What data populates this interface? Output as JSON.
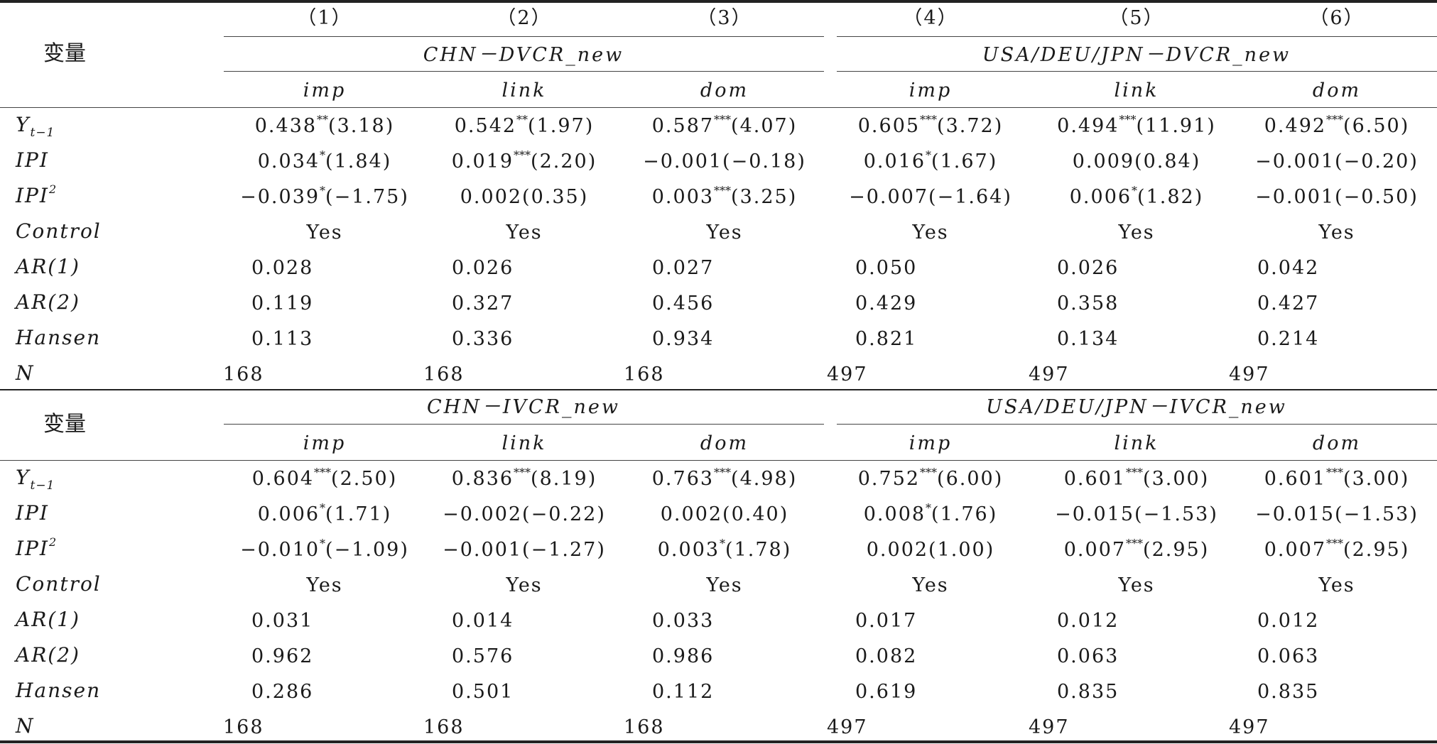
{
  "top": {
    "row_label": "变量",
    "col_numbers": [
      "（1）",
      "（2）",
      "（3）",
      "（4）",
      "（5）",
      "（6）"
    ],
    "group_left": "CHN－DVCR_new",
    "group_right": "USA/DEU/JPN－DVCR_new",
    "subcols": [
      "imp",
      "link",
      "dom",
      "imp",
      "link",
      "dom"
    ],
    "rows": [
      {
        "label": "Y",
        "sub": "t−1",
        "sup": "",
        "cells": [
          [
            "0.438",
            "**",
            "(3.18)"
          ],
          [
            "0.542",
            "**",
            "(1.97)"
          ],
          [
            "0.587",
            "***",
            "(4.07)"
          ],
          [
            "0.605",
            "***",
            "(3.72)"
          ],
          [
            "0.494",
            "***",
            "(11.91)"
          ],
          [
            "0.492",
            "***",
            "(6.50)"
          ]
        ]
      },
      {
        "label": "IPI",
        "sub": "",
        "sup": "",
        "cells": [
          [
            "0.034",
            "*",
            "(1.84)"
          ],
          [
            "0.019",
            "***",
            "(2.20)"
          ],
          [
            "−0.001",
            "",
            "(−0.18)"
          ],
          [
            "0.016",
            "*",
            "(1.67)"
          ],
          [
            "0.009",
            "",
            "(0.84)"
          ],
          [
            "−0.001",
            "",
            "(−0.20)"
          ]
        ]
      },
      {
        "label": "IPI",
        "sub": "",
        "sup": "2",
        "cells": [
          [
            "−0.039",
            "*",
            "(−1.75)"
          ],
          [
            "0.002",
            "",
            "(0.35)"
          ],
          [
            "0.003",
            "***",
            "(3.25)"
          ],
          [
            "−0.007",
            "",
            "(−1.64)"
          ],
          [
            "0.006",
            "*",
            "(1.82)"
          ],
          [
            "−0.001",
            "",
            "(−0.50)"
          ]
        ]
      },
      {
        "label": "Control",
        "sub": "",
        "sup": "",
        "cells": [
          [
            "Yes",
            "",
            ""
          ],
          [
            "Yes",
            "",
            ""
          ],
          [
            "Yes",
            "",
            ""
          ],
          [
            "Yes",
            "",
            ""
          ],
          [
            "Yes",
            "",
            ""
          ],
          [
            "Yes",
            "",
            ""
          ]
        ]
      },
      {
        "label": "AR(1)",
        "sub": "",
        "sup": "",
        "cells": [
          [
            "0.028",
            "",
            ""
          ],
          [
            "0.026",
            "",
            ""
          ],
          [
            "0.027",
            "",
            ""
          ],
          [
            "0.050",
            "",
            ""
          ],
          [
            "0.026",
            "",
            ""
          ],
          [
            "0.042",
            "",
            ""
          ]
        ]
      },
      {
        "label": "AR(2)",
        "sub": "",
        "sup": "",
        "cells": [
          [
            "0.119",
            "",
            ""
          ],
          [
            "0.327",
            "",
            ""
          ],
          [
            "0.456",
            "",
            ""
          ],
          [
            "0.429",
            "",
            ""
          ],
          [
            "0.358",
            "",
            ""
          ],
          [
            "0.427",
            "",
            ""
          ]
        ]
      },
      {
        "label": "Hansen",
        "sub": "",
        "sup": "",
        "cells": [
          [
            "0.113",
            "",
            ""
          ],
          [
            "0.336",
            "",
            ""
          ],
          [
            "0.934",
            "",
            ""
          ],
          [
            "0.821",
            "",
            ""
          ],
          [
            "0.134",
            "",
            ""
          ],
          [
            "0.214",
            "",
            ""
          ]
        ]
      },
      {
        "label": "N",
        "sub": "",
        "sup": "",
        "cells": [
          [
            "168",
            "",
            ""
          ],
          [
            "168",
            "",
            ""
          ],
          [
            "168",
            "",
            ""
          ],
          [
            "497",
            "",
            ""
          ],
          [
            "497",
            "",
            ""
          ],
          [
            "497",
            "",
            ""
          ]
        ]
      }
    ]
  },
  "bottom": {
    "row_label": "变量",
    "group_left": "CHN－IVCR_new",
    "group_right": "USA/DEU/JPN－IVCR_new",
    "subcols": [
      "imp",
      "link",
      "dom",
      "imp",
      "link",
      "dom"
    ],
    "rows": [
      {
        "label": "Y",
        "sub": "t−1",
        "sup": "",
        "cells": [
          [
            "0.604",
            "***",
            "(2.50)"
          ],
          [
            "0.836",
            "***",
            "(8.19)"
          ],
          [
            "0.763",
            "***",
            "(4.98)"
          ],
          [
            "0.752",
            "***",
            "(6.00)"
          ],
          [
            "0.601",
            "***",
            "(3.00)"
          ],
          [
            "0.601",
            "***",
            "(3.00)"
          ]
        ]
      },
      {
        "label": "IPI",
        "sub": "",
        "sup": "",
        "cells": [
          [
            "0.006",
            "*",
            "(1.71)"
          ],
          [
            "−0.002",
            "",
            "(−0.22)"
          ],
          [
            "0.002",
            "",
            "(0.40)"
          ],
          [
            "0.008",
            "*",
            "(1.76)"
          ],
          [
            "−0.015",
            "",
            "(−1.53)"
          ],
          [
            "−0.015",
            "",
            "(−1.53)"
          ]
        ]
      },
      {
        "label": "IPI",
        "sub": "",
        "sup": "2",
        "cells": [
          [
            "−0.010",
            "*",
            "(−1.09)"
          ],
          [
            "−0.001",
            "",
            "(−1.27)"
          ],
          [
            "0.003",
            "*",
            "(1.78)"
          ],
          [
            "0.002",
            "",
            "(1.00)"
          ],
          [
            "0.007",
            "***",
            "(2.95)"
          ],
          [
            "0.007",
            "***",
            "(2.95)"
          ]
        ]
      },
      {
        "label": "Control",
        "sub": "",
        "sup": "",
        "cells": [
          [
            "Yes",
            "",
            ""
          ],
          [
            "Yes",
            "",
            ""
          ],
          [
            "Yes",
            "",
            ""
          ],
          [
            "Yes",
            "",
            ""
          ],
          [
            "Yes",
            "",
            ""
          ],
          [
            "Yes",
            "",
            ""
          ]
        ]
      },
      {
        "label": "AR(1)",
        "sub": "",
        "sup": "",
        "cells": [
          [
            "0.031",
            "",
            ""
          ],
          [
            "0.014",
            "",
            ""
          ],
          [
            "0.033",
            "",
            ""
          ],
          [
            "0.017",
            "",
            ""
          ],
          [
            "0.012",
            "",
            ""
          ],
          [
            "0.012",
            "",
            ""
          ]
        ]
      },
      {
        "label": "AR(2)",
        "sub": "",
        "sup": "",
        "cells": [
          [
            "0.962",
            "",
            ""
          ],
          [
            "0.576",
            "",
            ""
          ],
          [
            "0.986",
            "",
            ""
          ],
          [
            "0.082",
            "",
            ""
          ],
          [
            "0.063",
            "",
            ""
          ],
          [
            "0.063",
            "",
            ""
          ]
        ]
      },
      {
        "label": "Hansen",
        "sub": "",
        "sup": "",
        "cells": [
          [
            "0.286",
            "",
            ""
          ],
          [
            "0.501",
            "",
            ""
          ],
          [
            "0.112",
            "",
            ""
          ],
          [
            "0.619",
            "",
            ""
          ],
          [
            "0.835",
            "",
            ""
          ],
          [
            "0.835",
            "",
            ""
          ]
        ]
      },
      {
        "label": "N",
        "sub": "",
        "sup": "",
        "cells": [
          [
            "168",
            "",
            ""
          ],
          [
            "168",
            "",
            ""
          ],
          [
            "168",
            "",
            ""
          ],
          [
            "497",
            "",
            ""
          ],
          [
            "497",
            "",
            ""
          ],
          [
            "497",
            "",
            ""
          ]
        ]
      }
    ]
  }
}
